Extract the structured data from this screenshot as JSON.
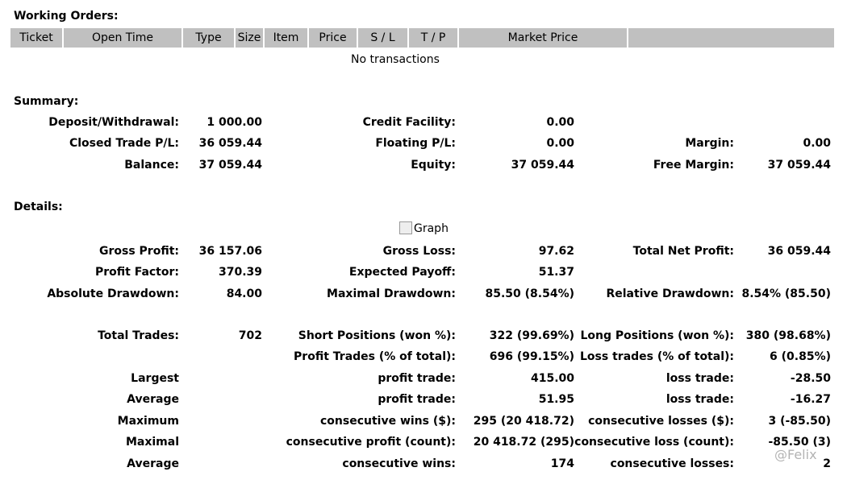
{
  "working_orders": {
    "title": "Working Orders:",
    "headers": [
      "Ticket",
      "Open Time",
      "Type",
      "Size",
      "Item",
      "Price",
      "S / L",
      "T / P",
      "Market Price"
    ],
    "empty_message": "No transactions"
  },
  "summary": {
    "title": "Summary:",
    "rows": [
      [
        "Deposit/Withdrawal:",
        "1 000.00",
        "Credit Facility:",
        "0.00",
        null,
        null
      ],
      [
        "Closed Trade P/L:",
        "36 059.44",
        "Floating P/L:",
        "0.00",
        "Margin:",
        "0.00"
      ],
      [
        "Balance:",
        "37 059.44",
        "Equity:",
        "37 059.44",
        "Free Margin:",
        "37 059.44"
      ]
    ]
  },
  "details": {
    "title": "Details:",
    "graph_alt": "Graph",
    "rows": [
      [
        "Gross Profit:",
        "36 157.06",
        "Gross Loss:",
        "97.62",
        "Total Net Profit:",
        "36 059.44"
      ],
      [
        "Profit Factor:",
        "370.39",
        "Expected Payoff:",
        "51.37",
        null,
        null
      ],
      [
        "Absolute Drawdown:",
        "84.00",
        "Maximal Drawdown:",
        "85.50 (8.54%)",
        "Relative Drawdown:",
        "8.54% (85.50)"
      ],
      [
        "Total Trades:",
        "702",
        "Short Positions (won %):",
        "322 (99.69%)",
        "Long Positions (won %):",
        "380 (98.68%)"
      ],
      [
        null,
        null,
        "Profit Trades (% of total):",
        "696 (99.15%)",
        "Loss trades (% of total):",
        "6 (0.85%)"
      ],
      [
        "Largest",
        null,
        "profit trade:",
        "415.00",
        "loss trade:",
        "-28.50"
      ],
      [
        "Average",
        null,
        "profit trade:",
        "51.95",
        "loss trade:",
        "-16.27"
      ],
      [
        "Maximum",
        null,
        "consecutive wins ($):",
        "295 (20 418.72)",
        "consecutive losses ($):",
        "3 (-85.50)"
      ],
      [
        "Maximal",
        null,
        "consecutive profit (count):",
        "20 418.72 (295)",
        "consecutive loss (count):",
        "-85.50 (3)"
      ],
      [
        "Average",
        null,
        "consecutive wins:",
        "174",
        "consecutive losses:",
        "2"
      ]
    ]
  },
  "watermark": "@Felix"
}
